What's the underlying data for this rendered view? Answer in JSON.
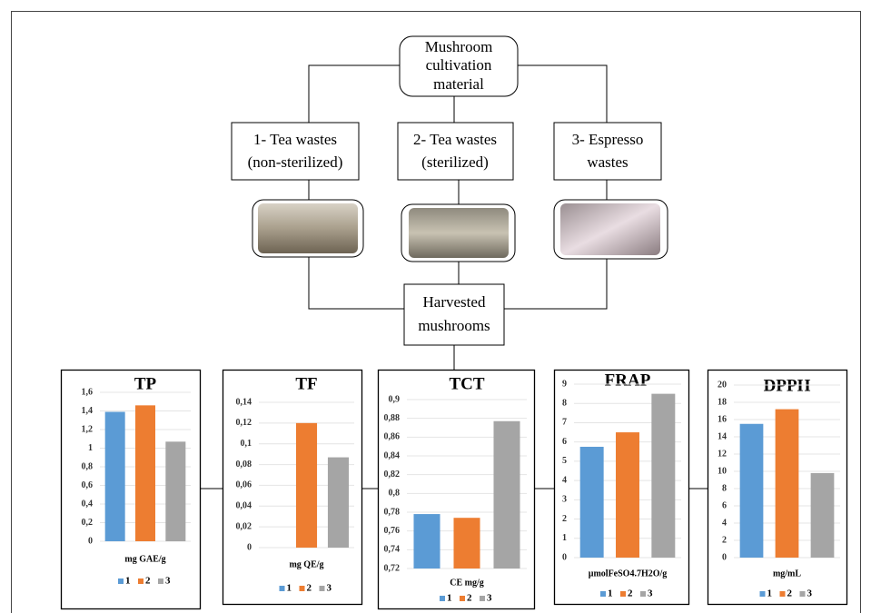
{
  "nodes": {
    "source": [
      "Mushroom",
      "cultivation",
      "material"
    ],
    "substrates": [
      [
        "1- Tea wastes",
        "(non-sterilized)"
      ],
      [
        "2- Tea wastes",
        "(sterilized)"
      ],
      [
        "3- Espresso",
        "wastes"
      ]
    ],
    "harvest": [
      "Harvested",
      "mushrooms"
    ]
  },
  "chart_data": [
    {
      "type": "bar",
      "title": "TP",
      "x_label": "mg GAE/g",
      "ylim": [
        0,
        1.6
      ],
      "grid": true,
      "yticks": [
        0,
        {
          "value": 0.2,
          "label": "0,2"
        },
        {
          "value": 0.4,
          "label": "0,4"
        },
        {
          "value": 0.6,
          "label": "0,6"
        },
        {
          "value": 0.8,
          "label": "0,8"
        },
        1,
        {
          "value": 1.2,
          "label": "1,2"
        },
        {
          "value": 1.4,
          "label": "1,4"
        },
        {
          "value": 1.6,
          "label": "1,6"
        }
      ],
      "series": [
        {
          "name": "1",
          "color": "#5b9bd5",
          "values": [
            1.39
          ]
        },
        {
          "name": "2",
          "color": "#ed7d31",
          "values": [
            1.46
          ]
        },
        {
          "name": "3",
          "color": "#a5a5a5",
          "values": [
            1.07
          ]
        }
      ]
    },
    {
      "type": "bar",
      "title": "TF",
      "x_label": "mg QE/g",
      "ylim": [
        0,
        0.14
      ],
      "grid": true,
      "yticks": [
        0,
        {
          "value": 0.02,
          "label": "0,02"
        },
        {
          "value": 0.04,
          "label": "0,04"
        },
        {
          "value": 0.06,
          "label": "0,06"
        },
        {
          "value": 0.08,
          "label": "0,08"
        },
        {
          "value": 0.1,
          "label": "0,1"
        },
        {
          "value": 0.12,
          "label": "0,12"
        },
        {
          "value": 0.14,
          "label": "0,14"
        }
      ],
      "series": [
        {
          "name": "1",
          "color": "#5b9bd5",
          "values": [
            0
          ]
        },
        {
          "name": "2",
          "color": "#ed7d31",
          "values": [
            0.12
          ]
        },
        {
          "name": "3",
          "color": "#a5a5a5",
          "values": [
            0.087
          ]
        }
      ]
    },
    {
      "type": "bar",
      "title": "TCT",
      "x_label": "CE mg/g",
      "ylim": [
        0.72,
        0.9
      ],
      "grid": true,
      "yticks": [
        {
          "value": 0.72,
          "label": "0,72"
        },
        {
          "value": 0.74,
          "label": "0,74"
        },
        {
          "value": 0.76,
          "label": "0,76"
        },
        {
          "value": 0.78,
          "label": "0,78"
        },
        {
          "value": 0.8,
          "label": "0,8"
        },
        {
          "value": 0.82,
          "label": "0,82"
        },
        {
          "value": 0.84,
          "label": "0,84"
        },
        {
          "value": 0.86,
          "label": "0,86"
        },
        {
          "value": 0.88,
          "label": "0,88"
        },
        {
          "value": 0.9,
          "label": "0,9"
        }
      ],
      "series": [
        {
          "name": "1",
          "color": "#5b9bd5",
          "values": [
            0.778
          ]
        },
        {
          "name": "2",
          "color": "#ed7d31",
          "values": [
            0.774
          ]
        },
        {
          "name": "3",
          "color": "#a5a5a5",
          "values": [
            0.877
          ]
        }
      ]
    },
    {
      "type": "bar",
      "title": "FRAP",
      "x_label": "µmolFeSO4.7H2O/g",
      "ylim": [
        0,
        9
      ],
      "grid": true,
      "yticks": [
        0,
        1,
        2,
        3,
        4,
        5,
        6,
        7,
        8,
        9
      ],
      "series": [
        {
          "name": "1",
          "color": "#5b9bd5",
          "values": [
            5.75
          ]
        },
        {
          "name": "2",
          "color": "#ed7d31",
          "values": [
            6.5
          ]
        },
        {
          "name": "3",
          "color": "#a5a5a5",
          "values": [
            8.5
          ]
        }
      ]
    },
    {
      "type": "bar",
      "title": "DPPH",
      "x_label": "mg/mL",
      "ylim": [
        0,
        20
      ],
      "grid": true,
      "yticks": [
        0,
        2,
        4,
        6,
        8,
        10,
        12,
        14,
        16,
        18,
        20
      ],
      "series": [
        {
          "name": "1",
          "color": "#5b9bd5",
          "values": [
            15.5
          ]
        },
        {
          "name": "2",
          "color": "#ed7d31",
          "values": [
            17.2
          ]
        },
        {
          "name": "3",
          "color": "#a5a5a5",
          "values": [
            9.8
          ]
        }
      ]
    }
  ]
}
